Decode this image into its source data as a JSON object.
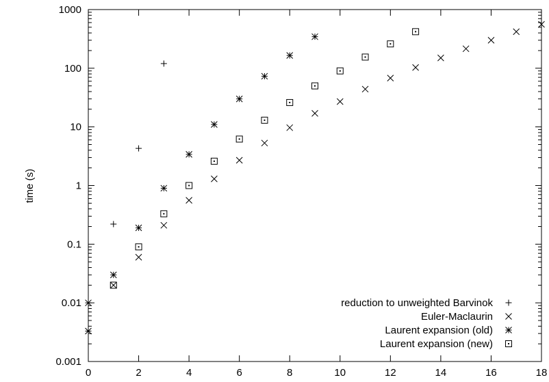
{
  "chart_data": {
    "type": "scatter",
    "title": "",
    "xlabel": "",
    "ylabel": "time (s)",
    "xlim": [
      0,
      18
    ],
    "ylim": [
      0.001,
      1000
    ],
    "yscale": "log",
    "grid": false,
    "legend_position": "bottom-right",
    "x_ticks": [
      "0",
      "2",
      "4",
      "6",
      "8",
      "10",
      "12",
      "14",
      "16",
      "18"
    ],
    "y_ticks": [
      "0.001",
      "0.01",
      "0.1",
      "1",
      "10",
      "100",
      "1000"
    ],
    "series": [
      {
        "name": "reduction to unweighted Barvinok",
        "marker": "plus",
        "x": [
          0,
          1,
          2,
          3
        ],
        "y": [
          0.01,
          0.22,
          4.3,
          120
        ]
      },
      {
        "name": "Euler-Maclaurin",
        "marker": "cross",
        "x": [
          0,
          1,
          2,
          3,
          4,
          5,
          6,
          7,
          8,
          9,
          10,
          11,
          12,
          13,
          14,
          15,
          16,
          17,
          18
        ],
        "y": [
          0.01,
          0.02,
          0.06,
          0.21,
          0.56,
          1.3,
          2.7,
          5.3,
          9.7,
          17,
          27,
          44,
          68,
          103,
          150,
          215,
          300,
          420,
          560
        ]
      },
      {
        "name": "Laurent expansion (old)",
        "marker": "star",
        "x": [
          0,
          1,
          2,
          3,
          4,
          5,
          6,
          7,
          8,
          9
        ],
        "y": [
          0.0033,
          0.03,
          0.19,
          0.9,
          3.4,
          11,
          30,
          73,
          165,
          345
        ]
      },
      {
        "name": "Laurent expansion (new)",
        "marker": "boxdot",
        "x": [
          1,
          2,
          3,
          4,
          5,
          6,
          7,
          8,
          9,
          10,
          11,
          12,
          13
        ],
        "y": [
          0.02,
          0.09,
          0.33,
          1.0,
          2.6,
          6.2,
          13,
          26,
          50,
          90,
          155,
          260,
          420
        ]
      }
    ]
  }
}
